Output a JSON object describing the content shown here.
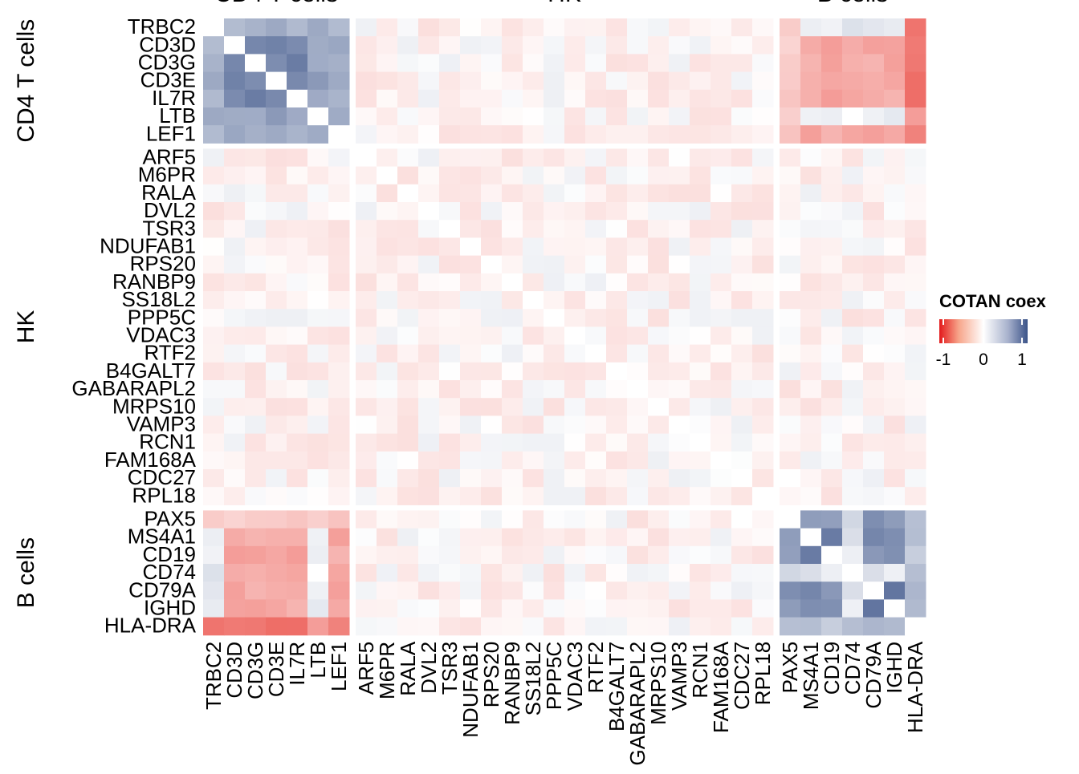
{
  "chart_data": {
    "type": "heatmap",
    "title": "",
    "genes": [
      "TRBC2",
      "CD3D",
      "CD3G",
      "CD3E",
      "IL7R",
      "LTB",
      "LEF1",
      "ARF5",
      "M6PR",
      "RALA",
      "DVL2",
      "TSR3",
      "NDUFAB1",
      "RPS20",
      "RANBP9",
      "SS18L2",
      "PPP5C",
      "VDAC3",
      "RTF2",
      "B4GALT7",
      "GABARAPL2",
      "MRPS10",
      "VAMP3",
      "RCN1",
      "FAM168A",
      "CDC27",
      "RPL18",
      "PAX5",
      "MS4A1",
      "CD19",
      "CD74",
      "CD79A",
      "IGHD",
      "HLA-DRA"
    ],
    "groups": [
      {
        "name": "CD4 T cells",
        "genes": [
          "TRBC2",
          "CD3D",
          "CD3G",
          "CD3E",
          "IL7R",
          "LTB",
          "LEF1"
        ]
      },
      {
        "name": "HK",
        "genes": [
          "ARF5",
          "M6PR",
          "RALA",
          "DVL2",
          "TSR3",
          "NDUFAB1",
          "RPS20",
          "RANBP9",
          "SS18L2",
          "PPP5C",
          "VDAC3",
          "RTF2",
          "B4GALT7",
          "GABARAPL2",
          "MRPS10",
          "VAMP3",
          "RCN1",
          "FAM168A",
          "CDC27",
          "RPL18"
        ]
      },
      {
        "name": "B cells",
        "genes": [
          "PAX5",
          "MS4A1",
          "CD19",
          "CD74",
          "CD79A",
          "IGHD",
          "HLA-DRA"
        ]
      }
    ],
    "approx_block_values": {
      "tcell_tcell": 0.45,
      "bcell_bcell": 0.5,
      "tcell_bcell": -0.3,
      "hladra_tcell": -0.55,
      "hk_any": -0.02
    },
    "legend": {
      "title": "COTAN coex",
      "ticks": [
        "-1",
        "0",
        "1"
      ],
      "range": [
        -1,
        1
      ],
      "colors": {
        "low": "#e31a1c",
        "mid": "#ffffff",
        "high": "#3b5388"
      }
    }
  }
}
